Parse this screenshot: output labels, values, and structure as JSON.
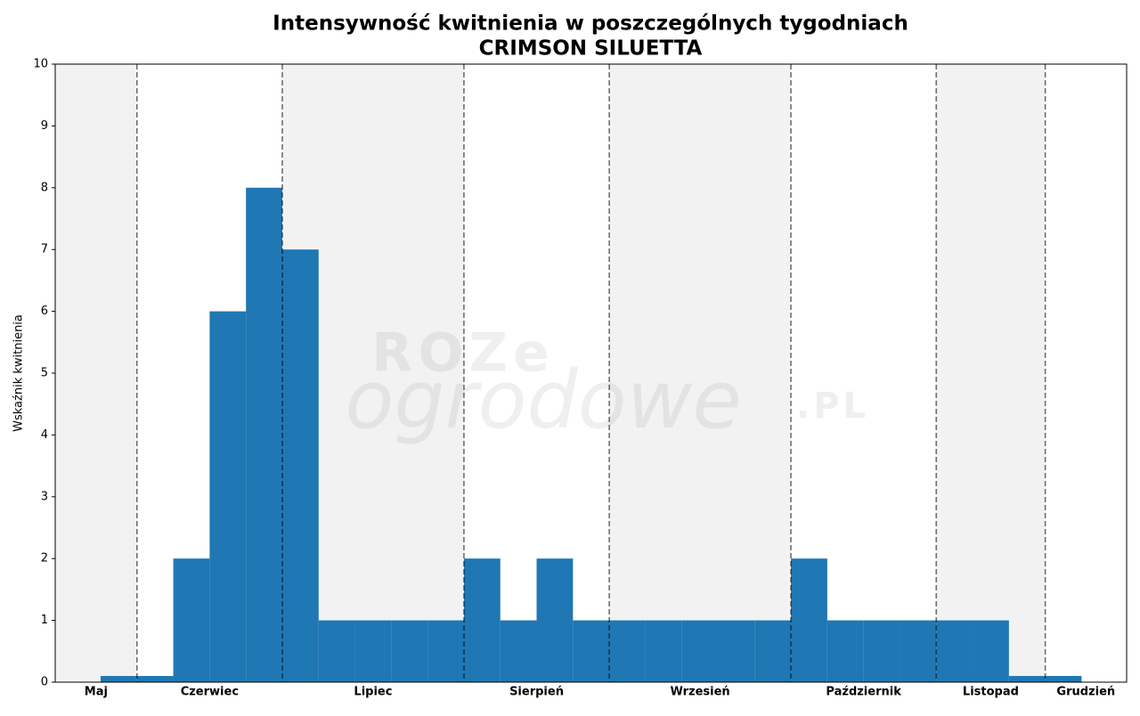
{
  "chart_data": {
    "type": "bar",
    "title": "Intensywność kwitnienia w poszczególnych tygodniach",
    "subtitle": "CRIMSON SILUETTA",
    "y_label": "Wskaźnik kwitnienia",
    "watermark": [
      "ROZe",
      "ogrodowe",
      ".PL"
    ],
    "color": "#1f77b4",
    "categories": [
      null,
      null,
      null,
      null,
      null,
      null,
      null,
      null,
      null,
      null,
      null,
      null,
      null,
      null,
      null,
      null,
      null,
      null,
      null,
      null,
      null,
      null,
      null,
      null,
      null,
      null,
      null
    ],
    "values": [
      0.1,
      0.1,
      2,
      6,
      8,
      7,
      1,
      1,
      1,
      1,
      2,
      1,
      2,
      1,
      1,
      1,
      1,
      1,
      1,
      2,
      1,
      1,
      1,
      1,
      1,
      0.1,
      0.1
    ],
    "xlim": [
      -1.25,
      28.24
    ],
    "months": [
      "Maj",
      "Czerwiec",
      "Lipiec",
      "Sierpień",
      "Wrzesień",
      "Październik",
      "Listopad",
      "Grudzień"
    ],
    "month_boundaries": [
      1,
      5,
      10,
      14,
      19,
      23,
      26
    ],
    "ylim": [
      0,
      10
    ],
    "yticks": [
      0,
      1,
      2,
      3,
      4,
      5,
      6,
      7,
      8,
      9,
      10
    ]
  }
}
